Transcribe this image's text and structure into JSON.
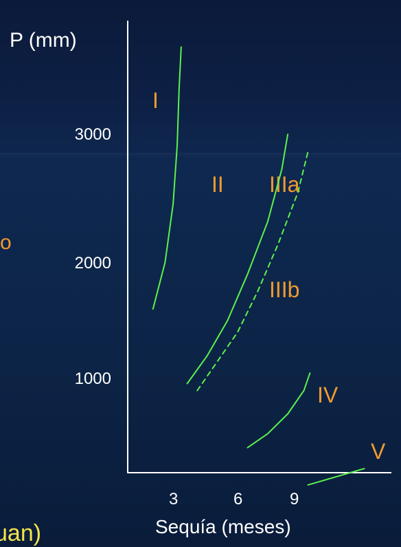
{
  "left_fragments": {
    "middle": "o",
    "bottom": "uan)"
  },
  "chart_data": {
    "type": "line",
    "ylabel": "P (mm)",
    "xlabel": "Sequía (meses)",
    "yticks": [
      "3000",
      "2000",
      "1000"
    ],
    "xticks": [
      "3",
      "6",
      "9"
    ],
    "regions": [
      {
        "label": "I"
      },
      {
        "label": "II"
      },
      {
        "label": "IIIa"
      },
      {
        "label": "IIIb"
      },
      {
        "label": "IV"
      },
      {
        "label": "V"
      }
    ],
    "series": [
      {
        "style": "solid",
        "x": [
          1.8,
          2.4,
          2.8,
          3.0,
          3.1,
          3.2
        ],
        "y": [
          1600,
          2000,
          2500,
          3000,
          3500,
          3850
        ]
      },
      {
        "style": "solid",
        "x": [
          3.5,
          4.5,
          5.5,
          6.5,
          7.5,
          8.2,
          8.5
        ],
        "y": [
          960,
          1200,
          1500,
          1900,
          2350,
          2800,
          3100
        ]
      },
      {
        "style": "dashed",
        "x": [
          4.0,
          5.0,
          6.0,
          7.0,
          8.0,
          9.0,
          9.5
        ],
        "y": [
          900,
          1150,
          1400,
          1750,
          2150,
          2600,
          2950
        ]
      },
      {
        "style": "solid",
        "x": [
          6.5,
          7.5,
          8.5,
          9.3,
          9.6
        ],
        "y": [
          410,
          530,
          700,
          900,
          1050
        ]
      },
      {
        "style": "solid",
        "x": [
          9.5,
          10.5,
          11.5,
          12.3
        ],
        "y": [
          90,
          140,
          190,
          230
        ]
      }
    ],
    "colors": {
      "curve": "#5cf24c",
      "region_label": "#f39a2f",
      "text": "#ffffff",
      "axis": "#ffffff"
    },
    "grid": false,
    "legend": "none"
  }
}
